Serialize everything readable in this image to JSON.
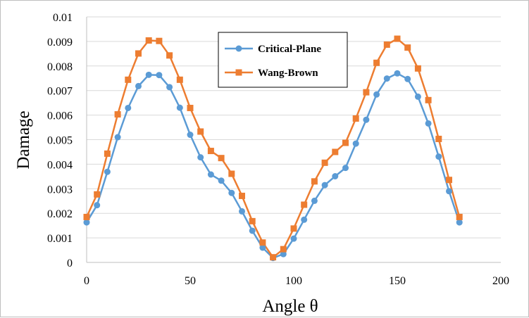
{
  "chart_data": {
    "type": "line",
    "title": "",
    "xlabel": "Angle θ",
    "ylabel": "Damage",
    "xlim": [
      0,
      200
    ],
    "ylim": [
      0,
      0.01
    ],
    "x_ticks": [
      "0",
      "50",
      "100",
      "150",
      "200"
    ],
    "y_ticks": [
      "0",
      "0.001",
      "0.002",
      "0.003",
      "0.004",
      "0.005",
      "0.006",
      "0.007",
      "0.008",
      "0.009",
      "0.01"
    ],
    "grid": "horizontal",
    "legend_position": "top-center",
    "x": [
      0,
      5,
      10,
      15,
      20,
      25,
      30,
      35,
      40,
      45,
      50,
      55,
      60,
      65,
      70,
      75,
      80,
      85,
      90,
      95,
      100,
      105,
      110,
      115,
      120,
      125,
      130,
      135,
      140,
      145,
      150,
      155,
      160,
      165,
      170,
      175,
      180
    ],
    "series": [
      {
        "name": "Critical-Plane",
        "color": "#5b9bd5",
        "marker": "circle",
        "values": [
          0.00163,
          0.00233,
          0.00369,
          0.0051,
          0.00629,
          0.00718,
          0.00764,
          0.00763,
          0.00714,
          0.0063,
          0.0052,
          0.00428,
          0.00358,
          0.00333,
          0.00283,
          0.00208,
          0.00129,
          0.0006,
          0.00018,
          0.00034,
          0.00097,
          0.00174,
          0.00251,
          0.00315,
          0.00351,
          0.00385,
          0.00484,
          0.00581,
          0.00684,
          0.00749,
          0.0077,
          0.00747,
          0.00675,
          0.00566,
          0.00431,
          0.0029,
          0.00163
        ]
      },
      {
        "name": "Wang-Brown",
        "color": "#ed7d31",
        "marker": "square",
        "values": [
          0.00185,
          0.00277,
          0.00443,
          0.00603,
          0.00744,
          0.00851,
          0.00904,
          0.00902,
          0.00843,
          0.00744,
          0.00629,
          0.00533,
          0.00454,
          0.00425,
          0.00361,
          0.00271,
          0.00168,
          0.00081,
          0.00021,
          0.00054,
          0.00138,
          0.00235,
          0.0033,
          0.00406,
          0.0045,
          0.00487,
          0.00586,
          0.00693,
          0.00813,
          0.00887,
          0.00911,
          0.00875,
          0.0079,
          0.00661,
          0.00503,
          0.00336,
          0.00185
        ]
      }
    ]
  }
}
